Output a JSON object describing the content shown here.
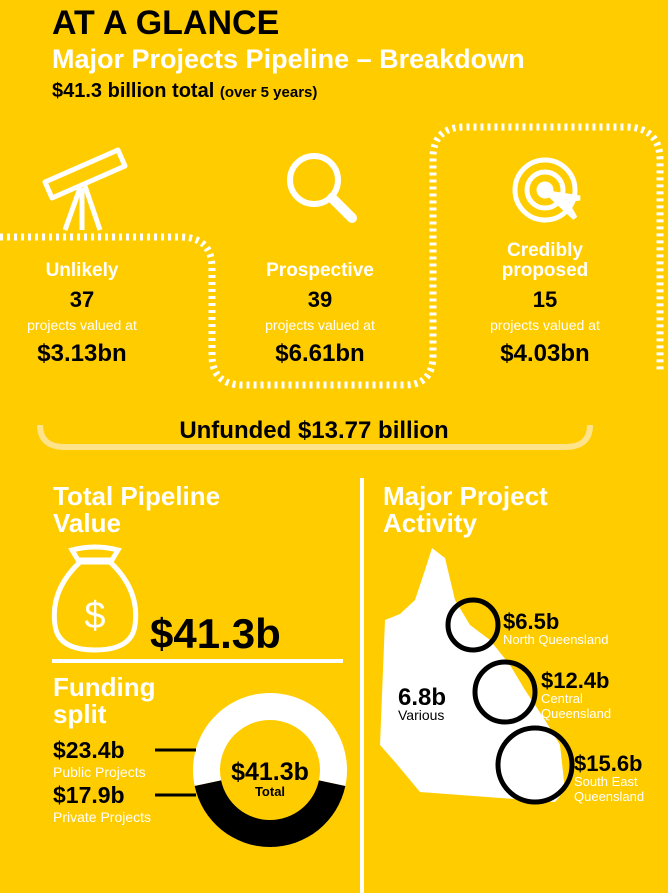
{
  "header": {
    "title": "AT A GLANCE",
    "subtitle": "Major Projects Pipeline – Breakdown",
    "total": "$41.3 billion total",
    "total_note": "(over 5 years)"
  },
  "stages": [
    {
      "name": "Unlikely",
      "count": "37",
      "caption": "projects valued at",
      "value": "$3.13bn"
    },
    {
      "name": "Prospective",
      "count": "39",
      "caption": "projects valued at",
      "value": "$6.61bn"
    },
    {
      "name_lines": [
        "Credibly",
        "proposed"
      ],
      "count": "15",
      "caption": "projects valued at",
      "value": "$4.03bn"
    }
  ],
  "unfunded": "Unfunded $13.77 billion",
  "pipeline": {
    "title_lines": [
      "Total Pipeline",
      "Value"
    ],
    "value": "$41.3b"
  },
  "funding": {
    "title_lines": [
      "Funding",
      "split"
    ],
    "total_label": "$41.3b",
    "total_caption": "Total",
    "segments": [
      {
        "label": "$23.4b",
        "name": "Public Projects",
        "value": 23.4,
        "color": "#ffffff"
      },
      {
        "label": "$17.9b",
        "name": "Private Projects",
        "value": 17.9,
        "color": "#000000"
      }
    ]
  },
  "activity": {
    "title_lines": [
      "Major Project",
      "Activity"
    ],
    "regions": [
      {
        "value": "$6.5b",
        "name_lines": [
          "North Queensland"
        ]
      },
      {
        "value": "$12.4b",
        "name_lines": [
          "Central",
          "Queensland"
        ]
      },
      {
        "value": "$15.6b",
        "name_lines": [
          "South East",
          "Queensland"
        ]
      },
      {
        "value": "6.8b",
        "name_lines": [
          "Various"
        ]
      }
    ]
  }
}
